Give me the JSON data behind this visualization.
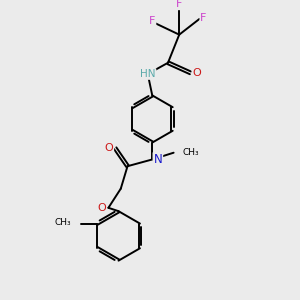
{
  "background_color": "#ebebeb",
  "figsize": [
    3.0,
    3.0
  ],
  "dpi": 100,
  "atom_colors": {
    "C": "#000000",
    "H": "#5aaaaa",
    "N": "#1a1acc",
    "O": "#cc1a1a",
    "F": "#cc44cc"
  },
  "bond_color": "#000000",
  "bond_width": 1.4,
  "font_size_atom": 7.0,
  "xlim": [
    0,
    10
  ],
  "ylim": [
    0,
    13
  ]
}
